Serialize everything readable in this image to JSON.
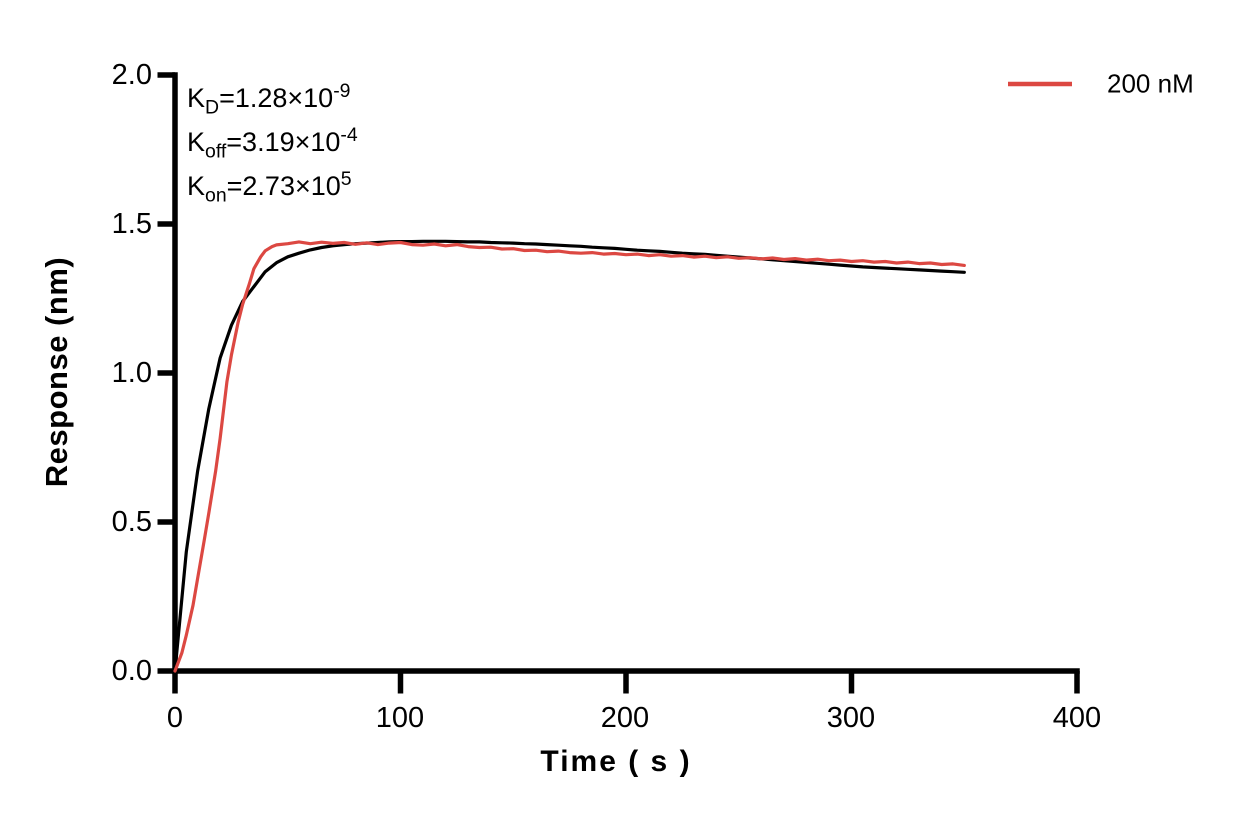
{
  "y_axis": {
    "title": "Response (nm)",
    "tick_labels": [
      "2.0",
      "1.5",
      "1.0",
      "0.5",
      "0.0"
    ]
  },
  "x_axis": {
    "title": "Time ( s )",
    "tick_labels": [
      "0",
      "100",
      "200",
      "300",
      "400"
    ]
  },
  "annotations": {
    "kd": {
      "symbol": "K",
      "subscript": "D",
      "body": "=1.28×10",
      "exponent": "-9"
    },
    "koff": {
      "symbol": "K",
      "subscript": "off",
      "body": "=3.19×10",
      "exponent": "-4"
    },
    "kon": {
      "symbol": "K",
      "subscript": "on",
      "body": "=2.73×10",
      "exponent": "5"
    }
  },
  "legend": {
    "label": "200 nM",
    "color": "#dc4842"
  },
  "chart_data": {
    "type": "line",
    "title": "",
    "xlabel": "Time ( s )",
    "ylabel": "Response (nm)",
    "xlim": [
      0,
      400
    ],
    "ylim": [
      0.0,
      2.0
    ],
    "xticks": [
      0,
      100,
      200,
      300,
      400
    ],
    "yticks": [
      0,
      0.5,
      1,
      1.5,
      2
    ],
    "grid": false,
    "legend_position": "top-right",
    "axis_color": "#000000",
    "kinetics": {
      "KD": "1.28×10^-9",
      "Koff": "3.19×10^-4",
      "Kon": "2.73×10^5"
    },
    "series": [
      {
        "id": "fit-curve",
        "name": "kinetic fit",
        "color": "#000000",
        "points": [
          [
            0,
            0
          ],
          [
            5,
            0.4
          ],
          [
            10,
            0.67
          ],
          [
            15,
            0.88
          ],
          [
            20,
            1.05
          ],
          [
            25,
            1.16
          ],
          [
            30,
            1.24
          ],
          [
            35,
            1.29
          ],
          [
            40,
            1.34
          ],
          [
            45,
            1.37
          ],
          [
            50,
            1.39
          ],
          [
            55,
            1.402
          ],
          [
            60,
            1.413
          ],
          [
            65,
            1.421
          ],
          [
            70,
            1.427
          ],
          [
            75,
            1.431
          ],
          [
            80,
            1.434
          ],
          [
            85,
            1.436
          ],
          [
            90,
            1.438
          ],
          [
            95,
            1.44
          ],
          [
            100,
            1.441
          ],
          [
            105,
            1.441
          ],
          [
            110,
            1.442
          ],
          [
            115,
            1.442
          ],
          [
            120,
            1.442
          ],
          [
            125,
            1.441
          ],
          [
            130,
            1.44
          ],
          [
            135,
            1.44
          ],
          [
            140,
            1.438
          ],
          [
            145,
            1.437
          ],
          [
            150,
            1.436
          ],
          [
            155,
            1.434
          ],
          [
            160,
            1.433
          ],
          [
            165,
            1.431
          ],
          [
            170,
            1.429
          ],
          [
            175,
            1.427
          ],
          [
            180,
            1.425
          ],
          [
            185,
            1.422
          ],
          [
            190,
            1.42
          ],
          [
            195,
            1.418
          ],
          [
            200,
            1.415
          ],
          [
            205,
            1.412
          ],
          [
            210,
            1.41
          ],
          [
            215,
            1.408
          ],
          [
            220,
            1.405
          ],
          [
            225,
            1.402
          ],
          [
            230,
            1.4
          ],
          [
            235,
            1.398
          ],
          [
            240,
            1.395
          ],
          [
            245,
            1.392
          ],
          [
            250,
            1.389
          ],
          [
            255,
            1.386
          ],
          [
            260,
            1.383
          ],
          [
            265,
            1.38
          ],
          [
            270,
            1.377
          ],
          [
            275,
            1.374
          ],
          [
            280,
            1.371
          ],
          [
            285,
            1.368
          ],
          [
            290,
            1.365
          ],
          [
            295,
            1.362
          ],
          [
            300,
            1.359
          ],
          [
            305,
            1.356
          ],
          [
            310,
            1.354
          ],
          [
            315,
            1.352
          ],
          [
            320,
            1.35
          ],
          [
            325,
            1.348
          ],
          [
            330,
            1.346
          ],
          [
            335,
            1.344
          ],
          [
            340,
            1.342
          ],
          [
            345,
            1.34
          ],
          [
            350,
            1.338
          ]
        ]
      },
      {
        "id": "data-curve",
        "name": "200 nM",
        "color": "#dc4842",
        "points": [
          [
            0,
            0
          ],
          [
            3,
            0.06
          ],
          [
            5,
            0.12
          ],
          [
            8,
            0.22
          ],
          [
            10,
            0.31
          ],
          [
            13,
            0.44
          ],
          [
            15,
            0.53
          ],
          [
            18,
            0.67
          ],
          [
            20,
            0.78
          ],
          [
            23,
            0.97
          ],
          [
            25,
            1.06
          ],
          [
            28,
            1.17
          ],
          [
            30,
            1.23
          ],
          [
            33,
            1.3
          ],
          [
            35,
            1.35
          ],
          [
            38,
            1.39
          ],
          [
            40,
            1.41
          ],
          [
            43,
            1.424
          ],
          [
            45,
            1.43
          ],
          [
            50,
            1.434
          ],
          [
            55,
            1.44
          ],
          [
            60,
            1.434
          ],
          [
            65,
            1.439
          ],
          [
            70,
            1.435
          ],
          [
            75,
            1.438
          ],
          [
            80,
            1.432
          ],
          [
            85,
            1.437
          ],
          [
            90,
            1.431
          ],
          [
            95,
            1.436
          ],
          [
            100,
            1.438
          ],
          [
            105,
            1.431
          ],
          [
            110,
            1.429
          ],
          [
            115,
            1.433
          ],
          [
            120,
            1.427
          ],
          [
            125,
            1.431
          ],
          [
            130,
            1.424
          ],
          [
            135,
            1.421
          ],
          [
            140,
            1.422
          ],
          [
            145,
            1.416
          ],
          [
            150,
            1.417
          ],
          [
            155,
            1.411
          ],
          [
            160,
            1.412
          ],
          [
            165,
            1.407
          ],
          [
            170,
            1.409
          ],
          [
            175,
            1.404
          ],
          [
            180,
            1.402
          ],
          [
            185,
            1.404
          ],
          [
            190,
            1.399
          ],
          [
            195,
            1.401
          ],
          [
            200,
            1.397
          ],
          [
            205,
            1.399
          ],
          [
            210,
            1.394
          ],
          [
            215,
            1.397
          ],
          [
            220,
            1.392
          ],
          [
            225,
            1.394
          ],
          [
            230,
            1.389
          ],
          [
            235,
            1.392
          ],
          [
            240,
            1.387
          ],
          [
            245,
            1.39
          ],
          [
            250,
            1.385
          ],
          [
            255,
            1.387
          ],
          [
            260,
            1.383
          ],
          [
            265,
            1.386
          ],
          [
            270,
            1.381
          ],
          [
            275,
            1.384
          ],
          [
            280,
            1.379
          ],
          [
            285,
            1.382
          ],
          [
            290,
            1.377
          ],
          [
            295,
            1.379
          ],
          [
            300,
            1.374
          ],
          [
            305,
            1.377
          ],
          [
            310,
            1.372
          ],
          [
            315,
            1.374
          ],
          [
            320,
            1.369
          ],
          [
            325,
            1.372
          ],
          [
            330,
            1.367
          ],
          [
            335,
            1.369
          ],
          [
            340,
            1.364
          ],
          [
            345,
            1.366
          ],
          [
            350,
            1.361
          ]
        ]
      }
    ]
  }
}
